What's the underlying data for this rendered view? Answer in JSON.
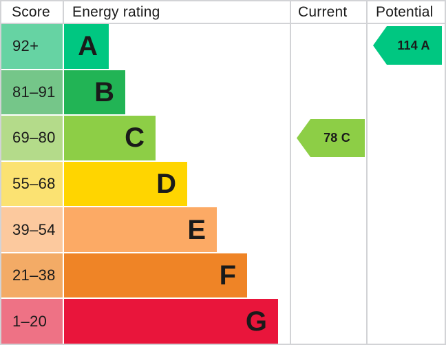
{
  "header": {
    "score": "Score",
    "energy_rating": "Energy rating",
    "current": "Current",
    "potential": "Potential"
  },
  "colors": {
    "grid_line": "#d2d3d6",
    "text": "#1a1a1a",
    "current_arrow": "#8dce46",
    "potential_arrow": "#00c781"
  },
  "chart_data": {
    "type": "bar",
    "title": "EPC energy efficiency rating chart",
    "columns": [
      "Score",
      "Energy rating",
      "Current",
      "Potential"
    ],
    "bands": [
      {
        "letter": "A",
        "range": "92+",
        "bar_color": "#00c781",
        "score_color": "#66d3a3"
      },
      {
        "letter": "B",
        "range": "81–91",
        "bar_color": "#22b455",
        "score_color": "#75c689"
      },
      {
        "letter": "C",
        "range": "69–80",
        "bar_color": "#8dce46",
        "score_color": "#b4db8a"
      },
      {
        "letter": "D",
        "range": "55–68",
        "bar_color": "#ffd500",
        "score_color": "#fbe272"
      },
      {
        "letter": "E",
        "range": "39–54",
        "bar_color": "#fcaa65",
        "score_color": "#fcc99e"
      },
      {
        "letter": "F",
        "range": "21–38",
        "bar_color": "#ef8426",
        "score_color": "#f3ab66"
      },
      {
        "letter": "G",
        "range": "1–20",
        "bar_color": "#e9153b",
        "score_color": "#ee7285"
      }
    ],
    "current": {
      "value": 78,
      "band": "C",
      "label": "78 C",
      "color": "#8dce46"
    },
    "potential": {
      "value": 114,
      "band": "A",
      "label": "114 A",
      "color": "#00c781"
    }
  }
}
